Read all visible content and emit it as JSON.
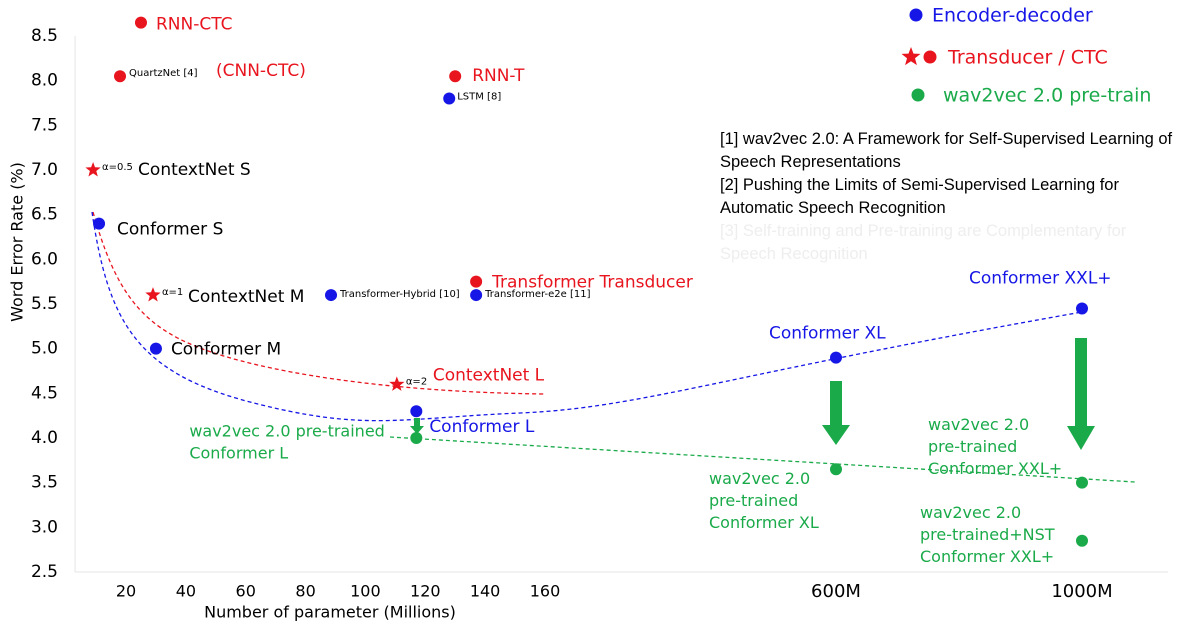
{
  "chart_data": {
    "type": "scatter",
    "x_label": "Number of parameter (Millions)",
    "y_label": "Word Error Rate (%)",
    "xlim": [
      3,
      1140
    ],
    "ylim": [
      2.5,
      8.5
    ],
    "xticks": [
      20,
      40,
      60,
      80,
      100,
      120,
      140,
      160,
      {
        "value": 600,
        "label": "600M"
      },
      {
        "value": 1000,
        "label": "1000M"
      }
    ],
    "yticks": [
      2.5,
      {
        "value": 3,
        "label": "3.0"
      },
      3.5,
      {
        "value": 4,
        "label": "4.0"
      },
      4.5,
      {
        "value": 5,
        "label": "5.0"
      },
      5.5,
      {
        "value": 6,
        "label": "6.0"
      },
      6.5,
      {
        "value": 7,
        "label": "7.0"
      },
      7.5,
      {
        "value": 8,
        "label": "8.0"
      },
      8.5
    ],
    "series": [
      {
        "name": "Encoder-decoder",
        "color": "#1616e6",
        "labels": [
          "LSTM [8]",
          "Transformer-Hybrid [10]",
          "Transformer-e2e [11]",
          "Conformer S",
          "Conformer M",
          "Conformer L",
          "Conformer XL",
          "Conformer XXL+"
        ],
        "x": [
          128,
          88.5,
          137,
          11,
          30,
          117,
          600,
          1000
        ],
        "values": [
          7.8,
          5.6,
          5.6,
          6.4,
          5.0,
          4.3,
          4.9,
          5.45
        ]
      },
      {
        "name": "Transducer / CTC",
        "color": "#e8141e",
        "markers": [
          "circle",
          "circle",
          "circle",
          "circle",
          "star",
          "star",
          "star"
        ],
        "labels": [
          "RNN-CTC",
          "QuartzNet [4]",
          "RNN-T",
          "Transformer Transducer",
          "ContextNet S",
          "ContextNet M",
          "ContextNet L"
        ],
        "tags": [
          null,
          null,
          null,
          null,
          "α=0.5",
          "α=1",
          "α=2"
        ],
        "x": [
          25,
          18,
          130,
          137,
          9,
          29,
          110.5
        ],
        "values": [
          8.65,
          8.05,
          8.05,
          5.75,
          7.0,
          5.6,
          4.6
        ]
      },
      {
        "name": "wav2vec 2.0 pre-train",
        "color": "#1aaa4a",
        "labels": [
          [
            "wav2vec 2.0 pre-trained",
            "Conformer L"
          ],
          [
            "wav2vec 2.0",
            "pre-trained",
            "Conformer XL"
          ],
          [
            "wav2vec 2.0",
            "pre-trained",
            "Conformer XXL+"
          ],
          [
            "wav2vec 2.0",
            "pre-trained+NST",
            "Conformer XXL+"
          ]
        ],
        "x": [
          117,
          600,
          1000,
          1000
        ],
        "values": [
          4.0,
          3.65,
          3.5,
          2.85
        ]
      }
    ],
    "annotations": [
      "(CNN-CTC)"
    ],
    "notes": [
      "[1] wav2vec 2.0: A Framework for Self-Supervised Learning of Speech Representations",
      "[2] Pushing the Limits of Semi-Supervised Learning for Automatic Speech Recognition",
      "[3] Self-training and Pre-training are Complementary for Speech Recognition"
    ]
  }
}
